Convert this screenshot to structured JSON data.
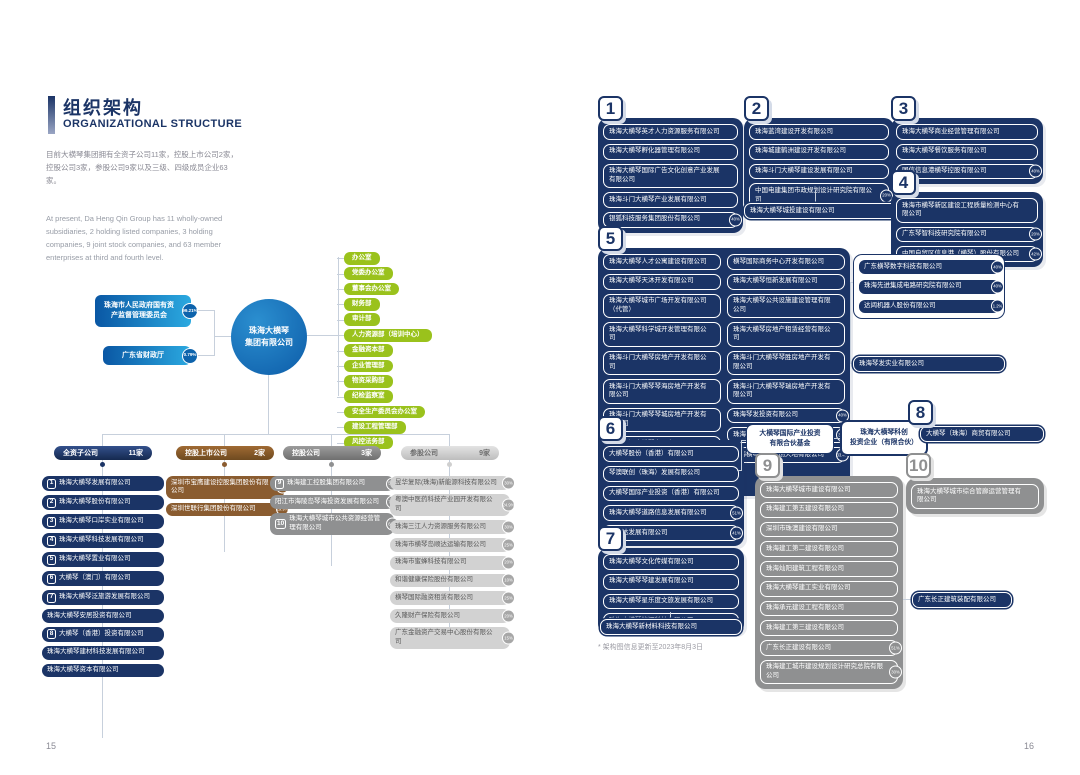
{
  "header": {
    "title_zh": "组织架构",
    "title_en": "ORGANIZATIONAL STRUCTURE",
    "desc_zh": "目前大横琴集团拥有全资子公司11家，控股上市公司2家，控股公司3家，参股公司9家以及三级、四级成员企业63家。",
    "desc_en": "At present, Da Heng Qin Group has 11 wholly-owned subsidiaries, 2 holding listed companies, 3 holding companies, 9 joint stock companies, and 63 member enterprises at third and fourth level."
  },
  "meta": {
    "footnote": "* 架构图信息更新至2023年8月3日",
    "page_left_no": "15",
    "page_right_no": "16"
  },
  "org": {
    "shareholders": [
      {
        "label": "珠海市人民政府国有资产监督管理委员会",
        "pct": "99.21%"
      },
      {
        "label": "广东省财政厅",
        "pct": "0.79%"
      }
    ],
    "core_line1": "珠海大横琴",
    "core_line2": "集团有限公司",
    "departments": [
      "办公室",
      "党委办公室",
      "董事会办公室",
      "财务部",
      "审计部",
      "人力资源部（培训中心）",
      "金融资本部",
      "企业管理部",
      "物资采购部",
      "纪检监察室",
      "安全生产委员会办公室",
      "建设工程管理部",
      "风控法务部"
    ],
    "columns": [
      {
        "header": "全资子公司",
        "count": "11家",
        "items": [
          {
            "num": "1",
            "label": "珠海大横琴发展有限公司"
          },
          {
            "num": "2",
            "label": "珠海大横琴股份有限公司"
          },
          {
            "num": "3",
            "label": "珠海大横琴口岸实业有限公司"
          },
          {
            "num": "4",
            "label": "珠海大横琴科技发展有限公司"
          },
          {
            "num": "5",
            "label": "珠海大横琴置业有限公司"
          },
          {
            "num": "6",
            "label": "大横琴（澳门）有限公司"
          },
          {
            "num": "7",
            "label": "珠海大横琴泛旅游发展有限公司"
          },
          {
            "label": "珠海大横琴安居投资有限公司"
          },
          {
            "num": "8",
            "label": "大横琴（香港）投资有限公司"
          },
          {
            "label": "珠海大横琴建材科技发展有限公司"
          },
          {
            "label": "珠海大横琴资本有限公司"
          }
        ]
      },
      {
        "header": "控股上市公司",
        "count": "2家",
        "items": [
          {
            "label": "深圳市宝鹰建设控股集团股份有限公司",
            "pct": "26.49%"
          },
          {
            "label": "深圳世联行集团股份有限公司",
            "pct": "29.9%"
          }
        ]
      },
      {
        "header": "控股公司",
        "count": "3家",
        "items": [
          {
            "num": "9",
            "label": "珠海建工控股集团有限公司",
            "pct": "51%"
          },
          {
            "label": "阳江市海陵岛琴海投资发展有限公司",
            "pct": "70%"
          },
          {
            "num": "10",
            "label": "珠海大横琴城市公共资源经营管理有限公司",
            "pct": "60%"
          }
        ]
      },
      {
        "header": "参股公司",
        "count": "9家",
        "items": [
          {
            "label": "昱华复际(珠海)新能源科技有限公司",
            "pct": "30%"
          },
          {
            "label": "粤澳中医药科技产业园开发有限公司",
            "pct": "24.9%"
          },
          {
            "label": "珠海三江人力资源服务有限公司",
            "pct": "30%"
          },
          {
            "label": "珠海市横琴岛顺达运输有限公司",
            "pct": "25%"
          },
          {
            "label": "珠海市蜜蜂科技有限公司",
            "pct": "20%"
          },
          {
            "label": "和谐健康保险股份有限公司",
            "pct": "10%"
          },
          {
            "label": "横琴国际融资租赁有限公司",
            "pct": "25%"
          },
          {
            "label": "久隆财产保险有限公司",
            "pct": "20%"
          },
          {
            "label": "广东金融资产交易中心股份有限公司",
            "pct": "15%"
          }
        ]
      }
    ]
  },
  "right": {
    "g1": {
      "num": "1",
      "items": [
        {
          "label": "珠海大横琴英才人力资源服务有限公司"
        },
        {
          "label": "珠海大横琴孵化器管理有限公司"
        },
        {
          "label": "珠海大横琴国际广告文化创意产业发展有限公司"
        },
        {
          "label": "珠海斗门大横琴产业发展有限公司"
        },
        {
          "label": "银狐科技服务集团股份有限公司",
          "pct": "40%"
        }
      ]
    },
    "g2": {
      "num": "2",
      "items": [
        {
          "label": "珠海蓝湾建设开发有限公司"
        },
        {
          "label": "珠海城建鹤洲建设开发有限公司"
        },
        {
          "label": "珠海斗门大横琴建设发展有限公司"
        },
        {
          "label": "中国电建集团市政规划设计研究院有限公司",
          "pct": "20%"
        }
      ]
    },
    "g2_attached": [
      {
        "label": "珠海大横琴城投建设有限公司",
        "pct": "49%"
      }
    ],
    "g3": {
      "num": "3",
      "items": [
        {
          "label": "珠海大横琴商业经营管理有限公司"
        },
        {
          "label": "珠海大横琴餐饮服务有限公司"
        },
        {
          "label": "国信信息港横琴控股有限公司",
          "pct": "40%"
        }
      ]
    },
    "g4": {
      "num": "4",
      "items": [
        {
          "label": "珠海市横琴新区建设工程质量检测中心有限公司"
        },
        {
          "label": "广东琴智科技研究院有限公司",
          "pct": "20%"
        },
        {
          "label": "中国自贸区信息港（横琴）股份有限公司",
          "pct": "42%"
        }
      ]
    },
    "g5": {
      "num": "5",
      "items_left": [
        {
          "label": "珠海大横琴人才公寓建设有限公司"
        },
        {
          "label": "珠海大横琴天沐开发有限公司"
        },
        {
          "label": "珠海大横琴城市广场开发有限公司（代管）"
        },
        {
          "label": "珠海大横琴科学城开发管理有限公司"
        },
        {
          "label": "珠海斗门大横琴房地产开发有限公司"
        },
        {
          "label": "珠海斗门大横琴琴海房地产开发有限公司"
        },
        {
          "label": "珠海斗门大横琴琴城房地产开发有限公司"
        },
        {
          "label": "珠海斗门大横琴电子有限公司"
        },
        {
          "label": "珠海华锶开发建设有限公司",
          "pct": "49%"
        },
        {
          "label": "珠海横琴能源发展有限公司",
          "pct": "45%"
        }
      ],
      "items_right": [
        {
          "label": "横琴国际商务中心开发有限公司"
        },
        {
          "label": "珠海大横琴恒新发展有限公司"
        },
        {
          "label": "珠海大横琴公共设施建设管理有限公司"
        },
        {
          "label": "珠海大横琴房地产租赁经营有限公司"
        },
        {
          "label": "珠海斗门大横琴琴胜房地产开发有限公司"
        },
        {
          "label": "珠海斗门大横琴琴瑞房地产开发有限公司"
        },
        {
          "label": "珠海琴发投资有限公司",
          "pct": "40%"
        },
        {
          "label": "珠海横琴总部大厦发展有限公司",
          "pct": "30%"
        },
        {
          "label": "珠海横琴丽新文创天地有限公司",
          "pct": "33.4%"
        }
      ]
    },
    "g5_side": [
      {
        "label": "广东横琴数字科技有限公司",
        "pct": "40%"
      },
      {
        "label": "珠海先进集成电路研究院有限公司",
        "pct": "40%"
      },
      {
        "label": "达闼机器人股份有限公司",
        "pct": "1.2%"
      }
    ],
    "qinfa": [
      {
        "label": "珠海琴发实业有限公司"
      }
    ],
    "g6": {
      "num": "6",
      "items": [
        {
          "label": "大横琴股份（香港）有限公司"
        },
        {
          "label": "琴澳联创（珠海）发展有限公司"
        },
        {
          "label": "大横琴国际产业投资（香港）有限公司"
        },
        {
          "label": "珠海大横琴道路信息发展有限公司",
          "pct": "51%"
        },
        {
          "label": "琴贵达发展有限公司",
          "pct": "41%"
        }
      ]
    },
    "fund_label": "大横琴国际产业投资\n有限合伙基金",
    "scifund_label": "珠海大横琴科创\n投资企业（有限合伙）",
    "g7": {
      "num": "7",
      "items": [
        {
          "label": "珠海大横琴文化传媒有限公司"
        },
        {
          "label": "珠海大横琴琴建发展有限公司"
        },
        {
          "label": "珠海大横琴星乐度文旅发展有限公司"
        },
        {
          "label": "珠海大横琴能源科技有限公司"
        }
      ]
    },
    "g7_extra": [
      {
        "label": "珠海大横琴新材料科技有限公司"
      }
    ],
    "g8": {
      "num": "8"
    },
    "g8_items": [
      {
        "label": "大横琴（珠海）商贸有限公司"
      }
    ],
    "g9": {
      "num": "9",
      "items": [
        {
          "label": "珠海大横琴城市建设有限公司"
        },
        {
          "label": "珠海建工第五建设有限公司"
        },
        {
          "label": "深圳市珠澳建设有限公司"
        },
        {
          "label": "珠海建工第二建设有限公司"
        },
        {
          "label": "珠海灿阳建筑工程有限公司"
        },
        {
          "label": "珠海大横琴建工实业有限公司"
        },
        {
          "label": "珠海承元建设工程有限公司"
        },
        {
          "label": "珠海建工第三建设有限公司"
        },
        {
          "label": "广东长正建设有限公司",
          "pct": "51%"
        },
        {
          "label": "珠海建工城市建设规划设计研究总院有限公司",
          "pct": "30%"
        }
      ]
    },
    "g9_side": [
      {
        "label": "广东长正建筑装配有限公司"
      }
    ],
    "g10": {
      "num": "10",
      "items": [
        {
          "label": "珠海大横琴城市综合管廊运营管理有限公司"
        }
      ]
    }
  }
}
